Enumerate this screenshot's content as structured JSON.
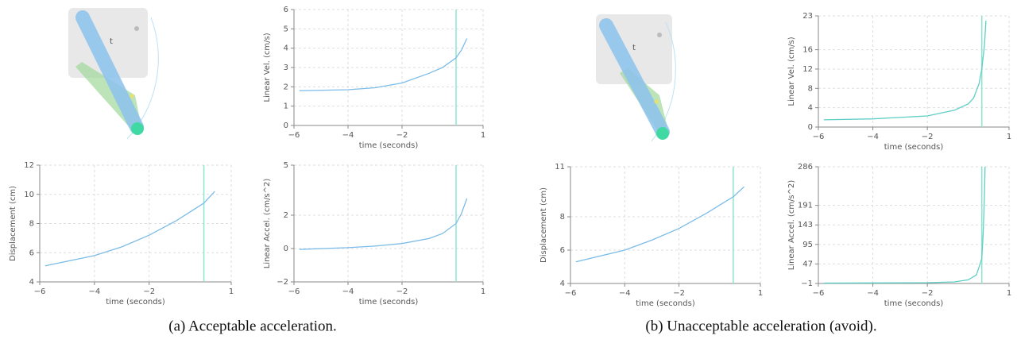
{
  "chart_data": [
    {
      "type": "line",
      "xlabel": "time (seconds)",
      "ylabel": "Linear Vel. (cm/s)",
      "xlim": [
        -6,
        1
      ],
      "xticks": [
        {
          "value": -6,
          "label": "−6"
        },
        {
          "value": -4,
          "label": "−4"
        },
        {
          "value": -2,
          "label": "−2"
        },
        1
      ],
      "ylim": [
        0,
        6
      ],
      "yticks": [
        0,
        1,
        2,
        3,
        4,
        5,
        6
      ],
      "grid": true,
      "vline_x": 0,
      "vline_color": "#8ee6cf",
      "x": [
        -5.8,
        -4,
        -3,
        -2,
        -1,
        -0.5,
        0,
        0.2,
        0.4
      ],
      "values": [
        1.8,
        1.85,
        1.95,
        2.2,
        2.7,
        3.0,
        3.5,
        3.9,
        4.5
      ],
      "color": "#7bbce8"
    },
    {
      "type": "line",
      "xlabel": "time (seconds)",
      "ylabel": "Displacement (cm)",
      "xlim": [
        -6,
        1
      ],
      "xticks": [
        {
          "value": -6,
          "label": "−6"
        },
        {
          "value": -4,
          "label": "−4"
        },
        {
          "value": -2,
          "label": "−2"
        },
        1
      ],
      "ylim": [
        4,
        12
      ],
      "yticks": [
        4,
        6,
        8,
        10,
        12
      ],
      "grid": true,
      "vline_x": 0,
      "vline_color": "#8ee6cf",
      "x": [
        -5.8,
        -4,
        -3,
        -2,
        -1,
        0,
        0.4
      ],
      "values": [
        5.1,
        5.8,
        6.4,
        7.2,
        8.2,
        9.4,
        10.2
      ],
      "color": "#7bbce8"
    },
    {
      "type": "line",
      "xlabel": "time (seconds)",
      "ylabel": "Linear Accel. (cm/s^2)",
      "xlim": [
        -6,
        1
      ],
      "xticks": [
        {
          "value": -6,
          "label": "−6"
        },
        {
          "value": -4,
          "label": "−4"
        },
        {
          "value": -2,
          "label": "−2"
        },
        1
      ],
      "ylim": [
        -2,
        5
      ],
      "yticks": [
        {
          "value": -2,
          "label": "−2"
        },
        0,
        2,
        5
      ],
      "grid": true,
      "vline_x": 0,
      "vline_color": "#8ee6cf",
      "x": [
        -5.8,
        -4,
        -3,
        -2,
        -1,
        -0.5,
        0,
        0.2,
        0.4
      ],
      "values": [
        -0.05,
        0.05,
        0.15,
        0.3,
        0.6,
        0.9,
        1.5,
        2.1,
        3.0
      ],
      "color": "#7bbce8"
    },
    {
      "type": "line",
      "xlabel": "time (seconds)",
      "ylabel": "Linear Vel. (cm/s)",
      "xlim": [
        -6,
        1
      ],
      "xticks": [
        {
          "value": -6,
          "label": "−6"
        },
        {
          "value": -4,
          "label": "−4"
        },
        {
          "value": -2,
          "label": "−2"
        },
        1
      ],
      "ylim": [
        0,
        23
      ],
      "yticks": [
        0,
        4,
        8,
        12,
        16,
        23
      ],
      "grid": true,
      "vline_x": 0,
      "vline_color": "#8ee6cf",
      "x": [
        -5.8,
        -4,
        -2,
        -1,
        -0.5,
        -0.3,
        -0.1,
        0,
        0.1,
        0.15
      ],
      "values": [
        1.5,
        1.7,
        2.3,
        3.5,
        4.8,
        6,
        9,
        12,
        17,
        22
      ],
      "color": "#5fcfc6"
    },
    {
      "type": "line",
      "xlabel": "time (seconds)",
      "ylabel": "Displacement (cm)",
      "xlim": [
        -6,
        1
      ],
      "xticks": [
        {
          "value": -6,
          "label": "−6"
        },
        {
          "value": -4,
          "label": "−4"
        },
        {
          "value": -2,
          "label": "−2"
        },
        1
      ],
      "ylim": [
        4,
        11
      ],
      "yticks": [
        4,
        6,
        8,
        11
      ],
      "grid": true,
      "vline_x": 0,
      "vline_color": "#8ee6cf",
      "x": [
        -5.8,
        -4,
        -3,
        -2,
        -1,
        0,
        0.4
      ],
      "values": [
        5.3,
        6.0,
        6.6,
        7.3,
        8.2,
        9.2,
        9.8
      ],
      "color": "#7bbce8"
    },
    {
      "type": "line",
      "xlabel": "time (seconds)",
      "ylabel": "Linear Accel. (cm/s^2)",
      "xlim": [
        -6,
        1
      ],
      "xticks": [
        {
          "value": -6,
          "label": "−6"
        },
        {
          "value": -4,
          "label": "−4"
        },
        {
          "value": -2,
          "label": "−2"
        },
        1
      ],
      "ylim": [
        -1,
        286
      ],
      "yticks": [
        {
          "value": -1,
          "label": "−1"
        },
        47,
        95,
        143,
        191,
        286
      ],
      "grid": true,
      "vline_x": 0,
      "vline_color": "#8ee6cf",
      "x": [
        -5.8,
        -4,
        -2,
        -1,
        -0.5,
        -0.2,
        0,
        0.05,
        0.1,
        0.12
      ],
      "values": [
        0,
        0.3,
        1,
        3,
        8,
        20,
        60,
        120,
        220,
        286
      ],
      "color": "#5fcfc6"
    }
  ],
  "captions": [
    "(a) Acceptable acceleration.",
    "(b) Unacceptable acceleration (avoid)."
  ]
}
